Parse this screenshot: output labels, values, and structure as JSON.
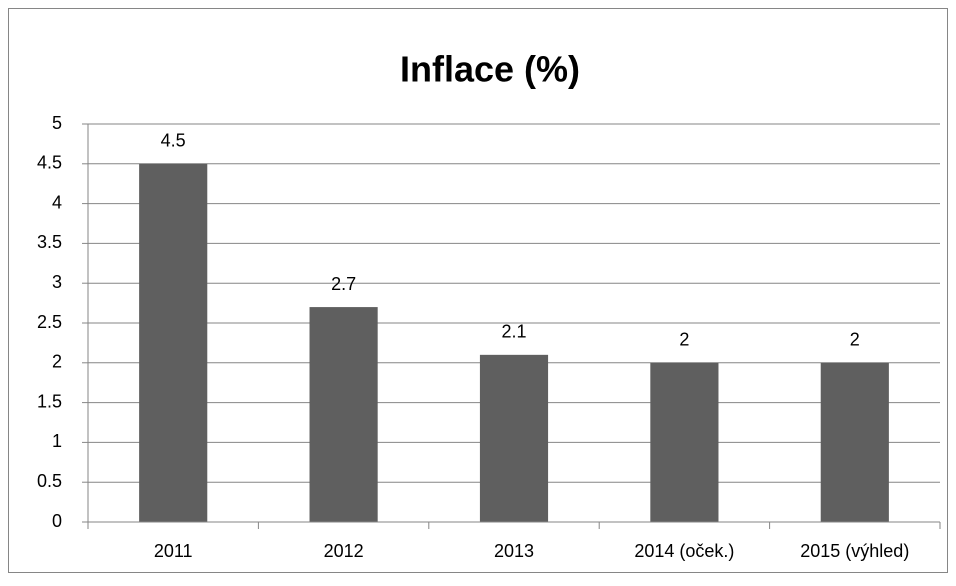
{
  "chart_data": {
    "type": "bar",
    "title": "Inflace (%)",
    "categories": [
      "2011",
      "2012",
      "2013",
      "2014 (oček.)",
      "2015 (výhled)"
    ],
    "values": [
      4.5,
      2.7,
      2.1,
      2,
      2
    ],
    "color": "#5f5f5f",
    "ylim": [
      0,
      5
    ],
    "yticks": [
      0,
      0.5,
      1,
      1.5,
      2,
      2.5,
      3,
      3.5,
      4,
      4.5,
      5
    ],
    "grid": true
  }
}
